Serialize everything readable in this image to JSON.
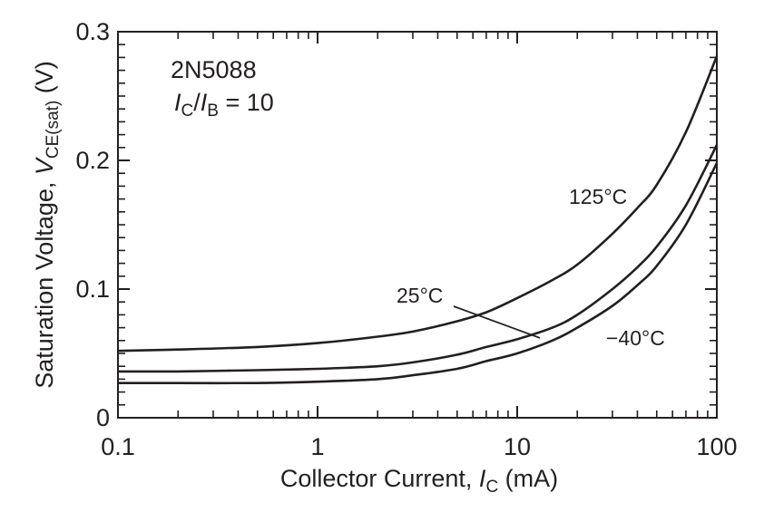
{
  "chart_data": {
    "type": "line",
    "title": "",
    "xscale": "log",
    "xlim": [
      0.1,
      100
    ],
    "ylim": [
      0,
      0.3
    ],
    "grid": false,
    "xlabel": {
      "main": "Collector Current, ",
      "italic": "I",
      "sub": "C",
      "unit": " (mA)"
    },
    "ylabel": {
      "main": "Saturation Voltage, ",
      "italic": "V",
      "sub": "CE(sat)",
      "unit": "  (V)"
    },
    "x_tick_labels": [
      "0.1",
      "1",
      "10",
      "100"
    ],
    "x_ticks": [
      0.1,
      1,
      10,
      100
    ],
    "y_tick_labels": [
      "0",
      "0.1",
      "0.2",
      "0.3"
    ],
    "y_ticks": [
      0,
      0.1,
      0.2,
      0.3
    ],
    "annotation": {
      "device": "2N5088",
      "ratio_i1": "I",
      "ratio_s1": "C",
      "ratio_slash": "/",
      "ratio_i2": "I",
      "ratio_s2": "B",
      "ratio_value": " = 10"
    },
    "series": [
      {
        "name": "125°C",
        "x": [
          0.1,
          0.2,
          0.5,
          1,
          2,
          3,
          5,
          7,
          10,
          15,
          20,
          30,
          40,
          50,
          70,
          100
        ],
        "y": [
          0.052,
          0.053,
          0.055,
          0.058,
          0.063,
          0.067,
          0.075,
          0.082,
          0.093,
          0.107,
          0.119,
          0.143,
          0.163,
          0.181,
          0.222,
          0.281
        ]
      },
      {
        "name": "25°C",
        "x": [
          0.1,
          0.2,
          0.5,
          1,
          2,
          3,
          5,
          7,
          10,
          15,
          20,
          30,
          40,
          50,
          70,
          100
        ],
        "y": [
          0.036,
          0.036,
          0.037,
          0.038,
          0.04,
          0.043,
          0.049,
          0.055,
          0.061,
          0.07,
          0.08,
          0.1,
          0.117,
          0.133,
          0.165,
          0.212
        ]
      },
      {
        "name": "−40°C",
        "x": [
          0.1,
          0.2,
          0.5,
          1,
          2,
          3,
          5,
          7,
          10,
          15,
          20,
          30,
          40,
          50,
          70,
          100
        ],
        "y": [
          0.027,
          0.027,
          0.027,
          0.028,
          0.03,
          0.033,
          0.038,
          0.044,
          0.05,
          0.06,
          0.07,
          0.087,
          0.103,
          0.118,
          0.15,
          0.198
        ]
      }
    ],
    "curve_labels": [
      {
        "text": "125°C",
        "at_x": 30,
        "at_y": 0.168
      },
      {
        "text": "25°C",
        "at_x": 1.9,
        "at_y": 0.091,
        "leader_to_x": 13,
        "leader_to_y": 0.062
      },
      {
        "text": "−40°C",
        "at_x": 45,
        "at_y": 0.059
      }
    ]
  }
}
